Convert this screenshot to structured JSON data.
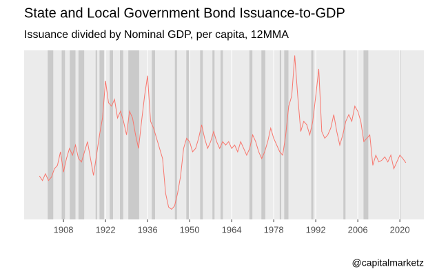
{
  "chart_data": {
    "type": "line",
    "title": "State and Local Government Bond Issuance-to-GDP",
    "subtitle": "Issuance divided by Nominal GDP, per capita, 12MMA",
    "credit": "@capitalmarketz",
    "color": "#f8766d",
    "x": [
      1900,
      1901,
      1902,
      1903,
      1904,
      1905,
      1906,
      1907,
      1908,
      1909,
      1910,
      1911,
      1912,
      1913,
      1914,
      1915,
      1916,
      1917,
      1918,
      1919,
      1920,
      1921,
      1922,
      1923,
      1924,
      1925,
      1926,
      1927,
      1928,
      1929,
      1930,
      1931,
      1932,
      1933,
      1934,
      1935,
      1936,
      1937,
      1938,
      1939,
      1940,
      1941,
      1942,
      1943,
      1944,
      1945,
      1946,
      1947,
      1948,
      1949,
      1950,
      1951,
      1952,
      1953,
      1954,
      1955,
      1956,
      1957,
      1958,
      1959,
      1960,
      1961,
      1962,
      1963,
      1964,
      1965,
      1966,
      1967,
      1968,
      1969,
      1970,
      1971,
      1972,
      1973,
      1974,
      1975,
      1976,
      1977,
      1978,
      1979,
      1980,
      1981,
      1982,
      1983,
      1984,
      1985,
      1986,
      1987,
      1988,
      1989,
      1990,
      1991,
      1992,
      1993,
      1994,
      1995,
      1996,
      1997,
      1998,
      1999,
      2000,
      2001,
      2002,
      2003,
      2004,
      2005,
      2006,
      2007,
      2008,
      2009,
      2010,
      2011,
      2012,
      2013,
      2014,
      2015,
      2016,
      2017,
      2018,
      2019,
      2020,
      2021,
      2022
    ],
    "values": [
      25.7,
      23,
      27,
      23,
      25,
      30,
      32,
      40,
      28,
      36,
      42,
      38,
      44,
      36,
      34,
      40,
      46,
      36,
      26,
      38,
      50,
      60,
      82,
      69,
      67,
      71,
      60,
      64,
      58,
      50,
      64,
      60,
      50,
      42,
      58,
      73,
      85,
      58,
      54,
      48,
      42,
      36,
      15.5,
      7.3,
      6,
      8,
      15.5,
      25.7,
      42,
      48,
      46,
      40,
      42,
      48,
      56,
      48,
      42,
      46,
      52,
      46,
      42,
      46,
      44,
      46,
      42,
      44,
      40,
      46,
      42,
      38,
      42,
      50,
      46,
      40,
      36,
      40,
      46,
      54,
      48,
      44,
      40,
      38,
      50,
      67,
      73,
      97,
      73,
      52,
      58,
      56,
      50,
      58,
      73,
      89,
      52,
      48,
      50,
      54,
      62,
      52,
      44,
      50,
      58,
      62,
      58,
      67,
      64,
      58,
      46,
      48,
      50,
      32,
      38,
      34,
      35,
      37,
      34,
      38,
      30,
      34,
      38,
      36,
      33.5
    ],
    "recessions": [
      [
        1902.75,
        1904.6
      ],
      [
        1907.4,
        1908.5
      ],
      [
        1910.1,
        1912
      ],
      [
        1913,
        1914.9
      ],
      [
        1918.7,
        1919.2
      ],
      [
        1920,
        1921.5
      ],
      [
        1923.4,
        1924.5
      ],
      [
        1926.8,
        1927.9
      ],
      [
        1929.6,
        1933.2
      ],
      [
        1937.4,
        1938.5
      ],
      [
        1945.1,
        1945.8
      ],
      [
        1948.9,
        1949.8
      ],
      [
        1953.5,
        1954.4
      ],
      [
        1957.6,
        1958.3
      ],
      [
        1960.3,
        1961.1
      ],
      [
        1969.9,
        1970.9
      ],
      [
        1973.9,
        1975.2
      ],
      [
        1980,
        1980.5
      ],
      [
        1981.5,
        1982.9
      ],
      [
        1990.5,
        1991.2
      ],
      [
        2001.2,
        2001.9
      ],
      [
        2007.9,
        2009.5
      ],
      [
        2020.1,
        2020.3
      ]
    ],
    "xlim": [
      1894.9,
      2028
    ],
    "xticks": [
      1908,
      1922,
      1936,
      1950,
      1964,
      1978,
      1992,
      2006,
      2020
    ],
    "ylim": [
      0,
      100
    ],
    "grid": true
  }
}
